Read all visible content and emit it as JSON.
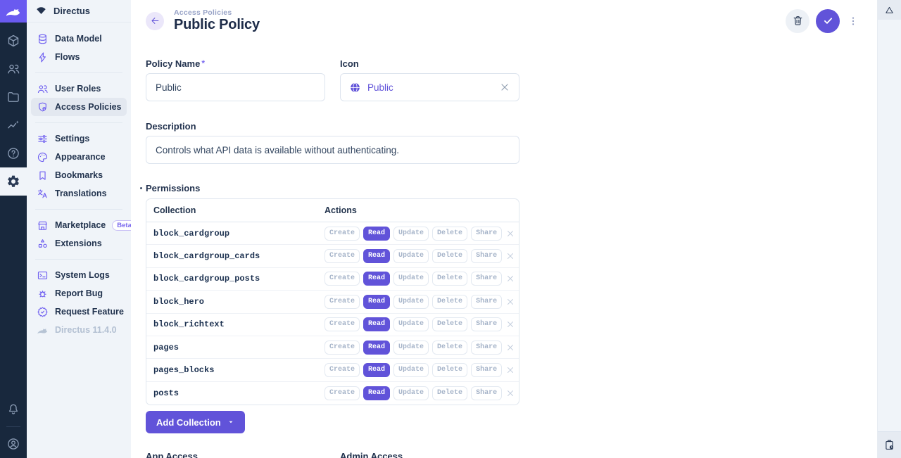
{
  "colors": {
    "accent": "#6153d9",
    "accent_bright": "#6a5af0",
    "module_bar_bg": "#18283d",
    "sidebar_bg": "#f0f4f9",
    "text_dark": "#22324e",
    "muted": "#a6b4c9"
  },
  "module_bar": {
    "logo_icon": "directus-rabbit-icon",
    "modules": [
      {
        "icon": "content-cube-icon",
        "active": false
      },
      {
        "icon": "users-icon",
        "active": false
      },
      {
        "icon": "files-folder-icon",
        "active": false
      },
      {
        "icon": "insights-chart-icon",
        "active": false
      },
      {
        "icon": "help-circle-icon",
        "active": false
      },
      {
        "icon": "settings-gear-icon",
        "active": true
      }
    ],
    "bottom_icons": [
      "notifications-bell-icon",
      "account-avatar-icon"
    ]
  },
  "sidebar": {
    "project_name": "Directus",
    "project_icon": "fan-icon",
    "groups": [
      {
        "items": [
          {
            "label": "Data Model",
            "icon": "database-icon"
          },
          {
            "label": "Flows",
            "icon": "bolt-icon"
          }
        ]
      },
      {
        "items": [
          {
            "label": "User Roles",
            "icon": "user-roles-icon"
          },
          {
            "label": "Access Policies",
            "icon": "shield-lock-icon",
            "active": true
          }
        ]
      },
      {
        "items": [
          {
            "label": "Settings",
            "icon": "sliders-icon"
          },
          {
            "label": "Appearance",
            "icon": "palette-icon"
          },
          {
            "label": "Bookmarks",
            "icon": "bookmark-icon"
          },
          {
            "label": "Translations",
            "icon": "translate-icon"
          }
        ]
      },
      {
        "items": [
          {
            "label": "Marketplace",
            "icon": "storefront-icon",
            "badge": "Beta"
          },
          {
            "label": "Extensions",
            "icon": "extensions-icon"
          }
        ]
      },
      {
        "items": [
          {
            "label": "System Logs",
            "icon": "terminal-icon"
          },
          {
            "label": "Report Bug",
            "icon": "bug-icon"
          },
          {
            "label": "Request Feature",
            "icon": "feature-badge-icon"
          }
        ]
      }
    ],
    "version": "Directus 11.4.0"
  },
  "header": {
    "breadcrumb": "Access Policies",
    "title": "Public Policy",
    "actions": [
      "delete-trash-icon",
      "save-check-icon",
      "more-options-dots-icon"
    ]
  },
  "form": {
    "policy_name": {
      "label": "Policy Name",
      "required_marker": "*",
      "value": "Public"
    },
    "icon": {
      "label": "Icon",
      "value": "Public",
      "icon": "globe-icon",
      "clear_icon": "close-icon"
    },
    "description": {
      "label": "Description",
      "value": "Controls what API data is available without authenticating."
    }
  },
  "permissions": {
    "label": "Permissions",
    "columns": [
      "Collection",
      "Actions"
    ],
    "actions": [
      "Create",
      "Read",
      "Update",
      "Delete",
      "Share"
    ],
    "active_action": "Read",
    "rows": [
      "block_cardgroup",
      "block_cardgroup_cards",
      "block_cardgroup_posts",
      "block_hero",
      "block_richtext",
      "pages",
      "pages_blocks",
      "posts"
    ],
    "add_button_label": "Add Collection"
  },
  "bottom_fields": {
    "app_access_label": "App Access",
    "admin_access_label": "Admin Access"
  },
  "right_strip": {
    "top_icon": "triangle-icon",
    "bottom_icon": "revisions-clipboard-clock-icon"
  }
}
